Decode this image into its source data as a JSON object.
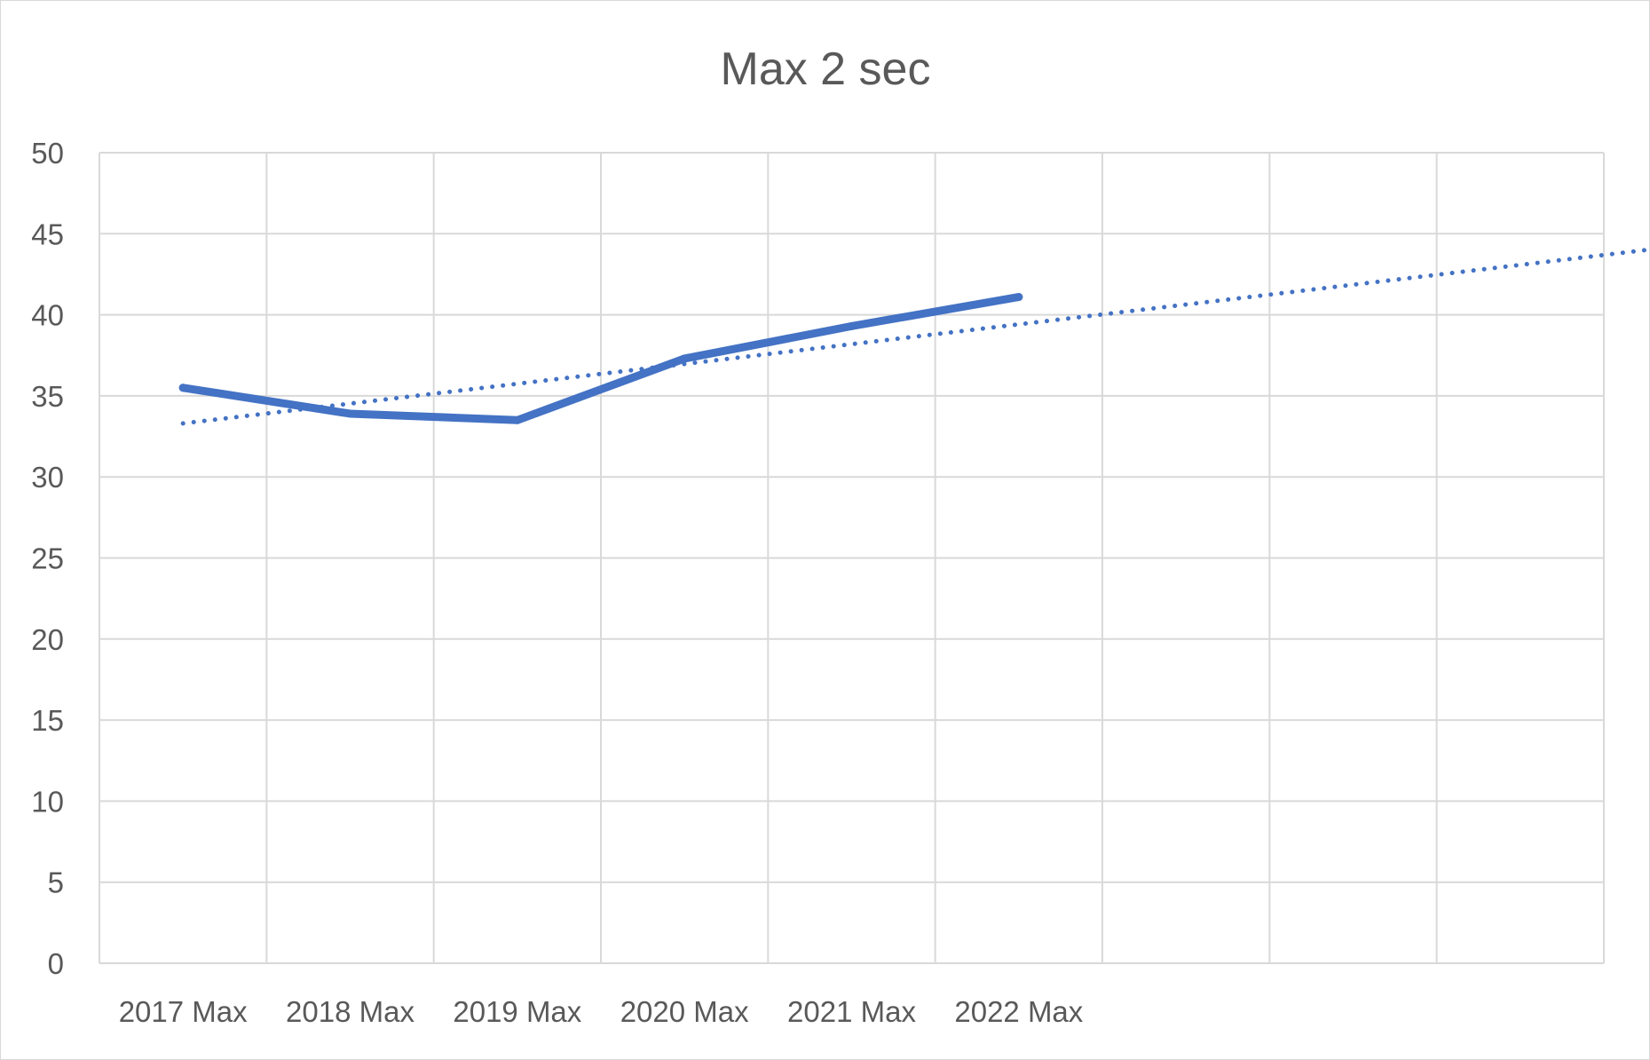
{
  "chart_data": {
    "type": "line",
    "title": "Max 2 sec",
    "categories": [
      "2017 Max",
      "2018 Max",
      "2019 Max",
      "2020 Max",
      "2021 Max",
      "2022 Max"
    ],
    "series": [
      {
        "values": [
          35.5,
          33.9,
          33.5,
          37.3,
          39.3,
          41.1
        ],
        "color": "#4472c4",
        "style": "solid"
      }
    ],
    "trendline": {
      "type": "linear",
      "style": "dotted",
      "color": "#4472c4",
      "forecast_categories": 4,
      "start": 33.3,
      "end": 44.3
    },
    "ylim": [
      0,
      50
    ],
    "yticks": [
      0,
      5,
      10,
      15,
      20,
      25,
      30,
      35,
      40,
      45,
      50
    ],
    "x_slots": 9,
    "grid": true,
    "legend": "none",
    "gridline_color": "#d9d9d9"
  }
}
